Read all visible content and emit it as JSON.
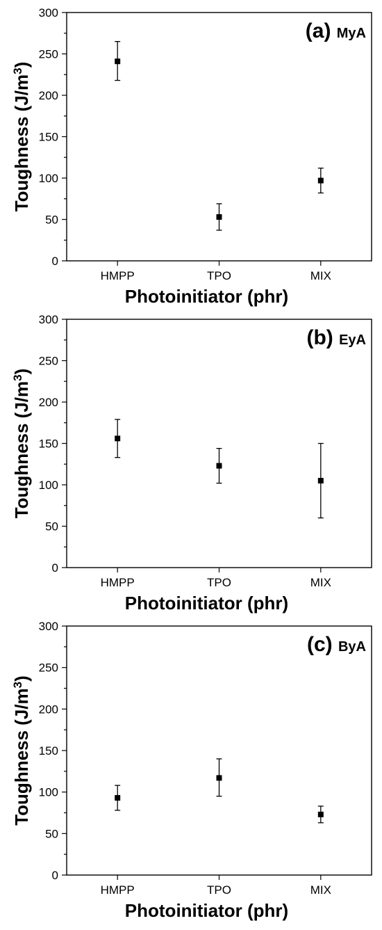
{
  "chart_data": [
    {
      "type": "scatter",
      "panel_label": "(a)",
      "panel_name": "MyA",
      "xlabel": "Photoinitiator (phr)",
      "ylabel": "Toughness (J/m",
      "ylabel_sup": "3",
      "ylabel_end": ")",
      "categories": [
        "HMPP",
        "TPO",
        "MIX"
      ],
      "values": [
        241,
        53,
        97
      ],
      "error_low": [
        218,
        37,
        82
      ],
      "error_high": [
        265,
        69,
        112
      ],
      "ylim": [
        0,
        300
      ],
      "yticks": [
        "0",
        "50",
        "100",
        "150",
        "200",
        "250",
        "300"
      ],
      "grid": false,
      "marker": "square"
    },
    {
      "type": "scatter",
      "panel_label": "(b)",
      "panel_name": "EyA",
      "xlabel": "Photoinitiator (phr)",
      "ylabel": "Toughness (J/m",
      "ylabel_sup": "3",
      "ylabel_end": ")",
      "categories": [
        "HMPP",
        "TPO",
        "MIX"
      ],
      "values": [
        156,
        123,
        105
      ],
      "error_low": [
        133,
        102,
        60
      ],
      "error_high": [
        179,
        144,
        150
      ],
      "ylim": [
        0,
        300
      ],
      "yticks": [
        "0",
        "50",
        "100",
        "150",
        "200",
        "250",
        "300"
      ],
      "grid": false,
      "marker": "square"
    },
    {
      "type": "scatter",
      "panel_label": "(c)",
      "panel_name": "ByA",
      "xlabel": "Photoinitiator (phr)",
      "ylabel": "Toughness (J/m",
      "ylabel_sup": "3",
      "ylabel_end": ")",
      "categories": [
        "HMPP",
        "TPO",
        "MIX"
      ],
      "values": [
        93,
        117,
        73
      ],
      "error_low": [
        78,
        95,
        63
      ],
      "error_high": [
        108,
        140,
        83
      ],
      "ylim": [
        0,
        300
      ],
      "yticks": [
        "0",
        "50",
        "100",
        "150",
        "200",
        "250",
        "300"
      ],
      "grid": false,
      "marker": "square"
    }
  ]
}
